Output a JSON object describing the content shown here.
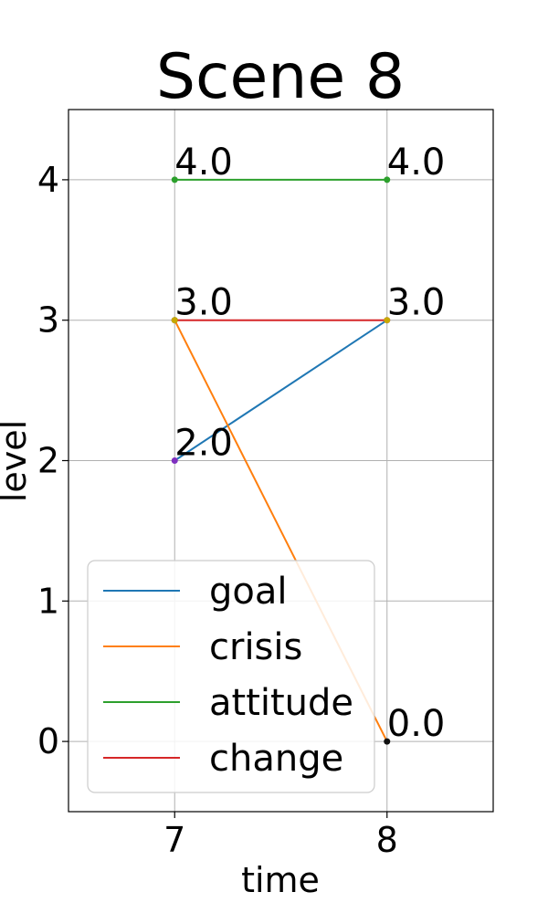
{
  "chart_data": {
    "type": "line",
    "title": "Scene 8",
    "xlabel": "time",
    "ylabel": "level",
    "x": [
      7,
      8
    ],
    "xlim": [
      6.5,
      8.5
    ],
    "ylim": [
      -0.5,
      4.5
    ],
    "x_ticks": [
      "7",
      "8"
    ],
    "y_ticks": [
      "0",
      "1",
      "2",
      "3",
      "4"
    ],
    "grid": true,
    "legend_position": "lower-left",
    "series": [
      {
        "name": "goal",
        "values": [
          2.0,
          3.0
        ],
        "color": "#1f77b4",
        "point_labels": [
          "2.0",
          "3.0"
        ]
      },
      {
        "name": "crisis",
        "values": [
          3.0,
          0.0
        ],
        "color": "#ff7f0e",
        "point_labels": [
          "",
          "0.0"
        ]
      },
      {
        "name": "attitude",
        "values": [
          4.0,
          4.0
        ],
        "color": "#2ca02c",
        "point_labels": [
          "4.0",
          "4.0"
        ]
      },
      {
        "name": "change",
        "values": [
          3.0,
          3.0
        ],
        "color": "#d62728",
        "point_labels": [
          "3.0",
          ""
        ]
      }
    ]
  }
}
